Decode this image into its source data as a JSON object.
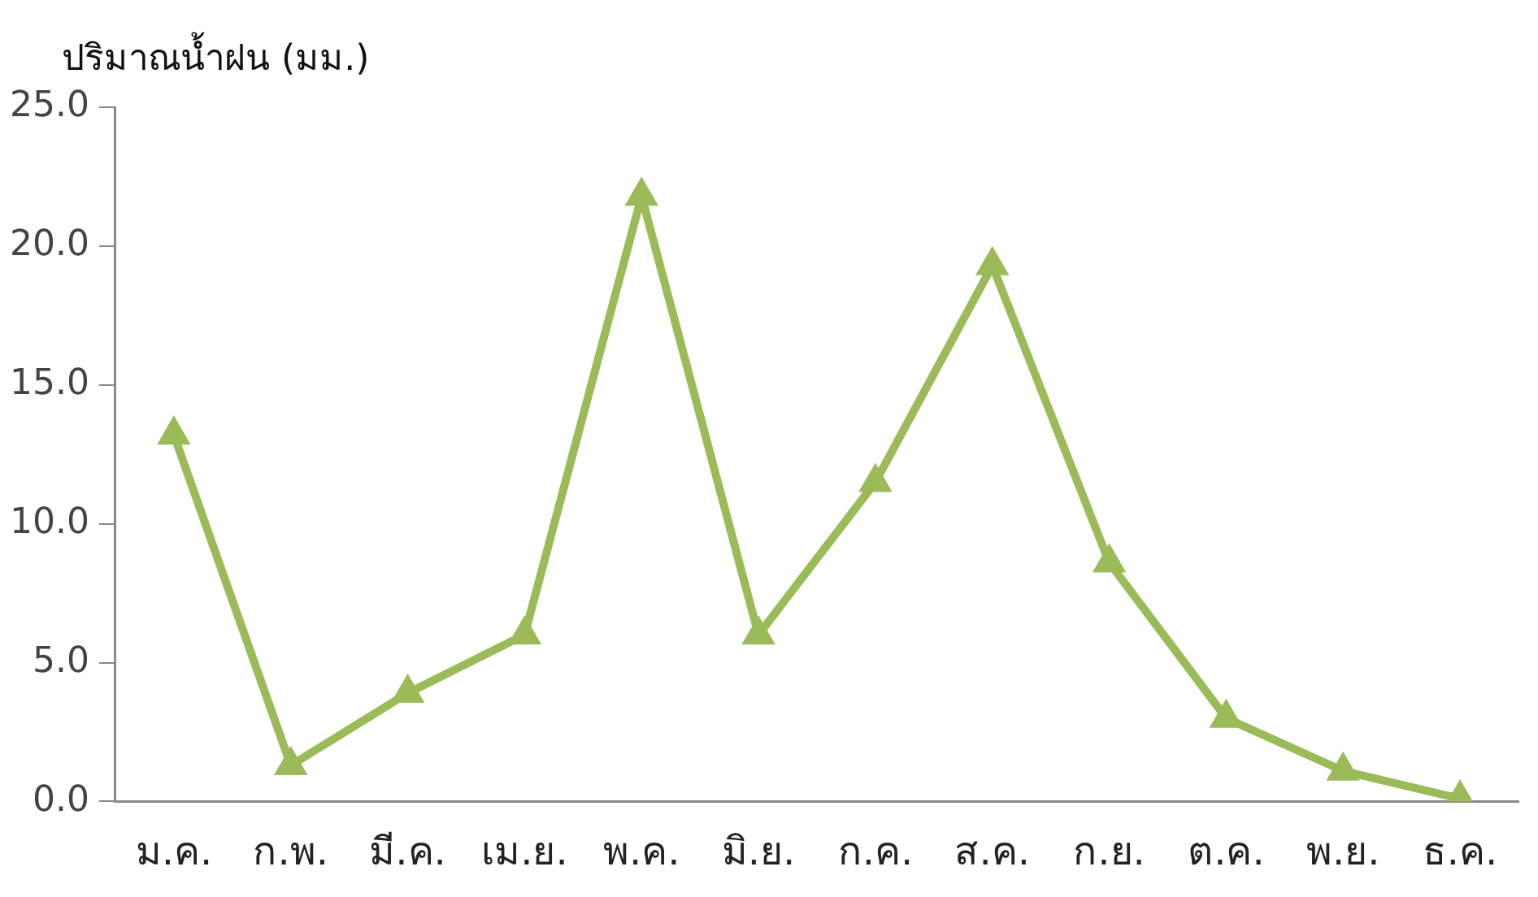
{
  "chart_data": {
    "type": "line",
    "ylabel": "ปริมาณน้ำฝน (มม.)",
    "categories": [
      "ม.ค.",
      "ก.พ.",
      "มี.ค.",
      "เม.ย.",
      "พ.ค.",
      "มิ.ย.",
      "ก.ค.",
      "ส.ค.",
      "ก.ย.",
      "ต.ค.",
      "พ.ย.",
      "ธ.ค."
    ],
    "series": [
      {
        "color": "#9bbb59",
        "values": [
          13.2,
          1.3,
          3.9,
          6.0,
          21.8,
          6.0,
          11.5,
          19.3,
          8.6,
          3.0,
          1.1,
          0.1
        ]
      }
    ],
    "ylim": [
      0,
      25
    ],
    "yticks": [
      {
        "value": 0,
        "label": "0.0"
      },
      {
        "value": 5,
        "label": "5.0"
      },
      {
        "value": 10,
        "label": "10.0"
      },
      {
        "value": 15,
        "label": "15.0"
      },
      {
        "value": 20,
        "label": "20.0"
      },
      {
        "value": 25,
        "label": "25.0"
      }
    ],
    "grid": false,
    "legend": false,
    "marker": "triangle",
    "line_style": "solid"
  }
}
